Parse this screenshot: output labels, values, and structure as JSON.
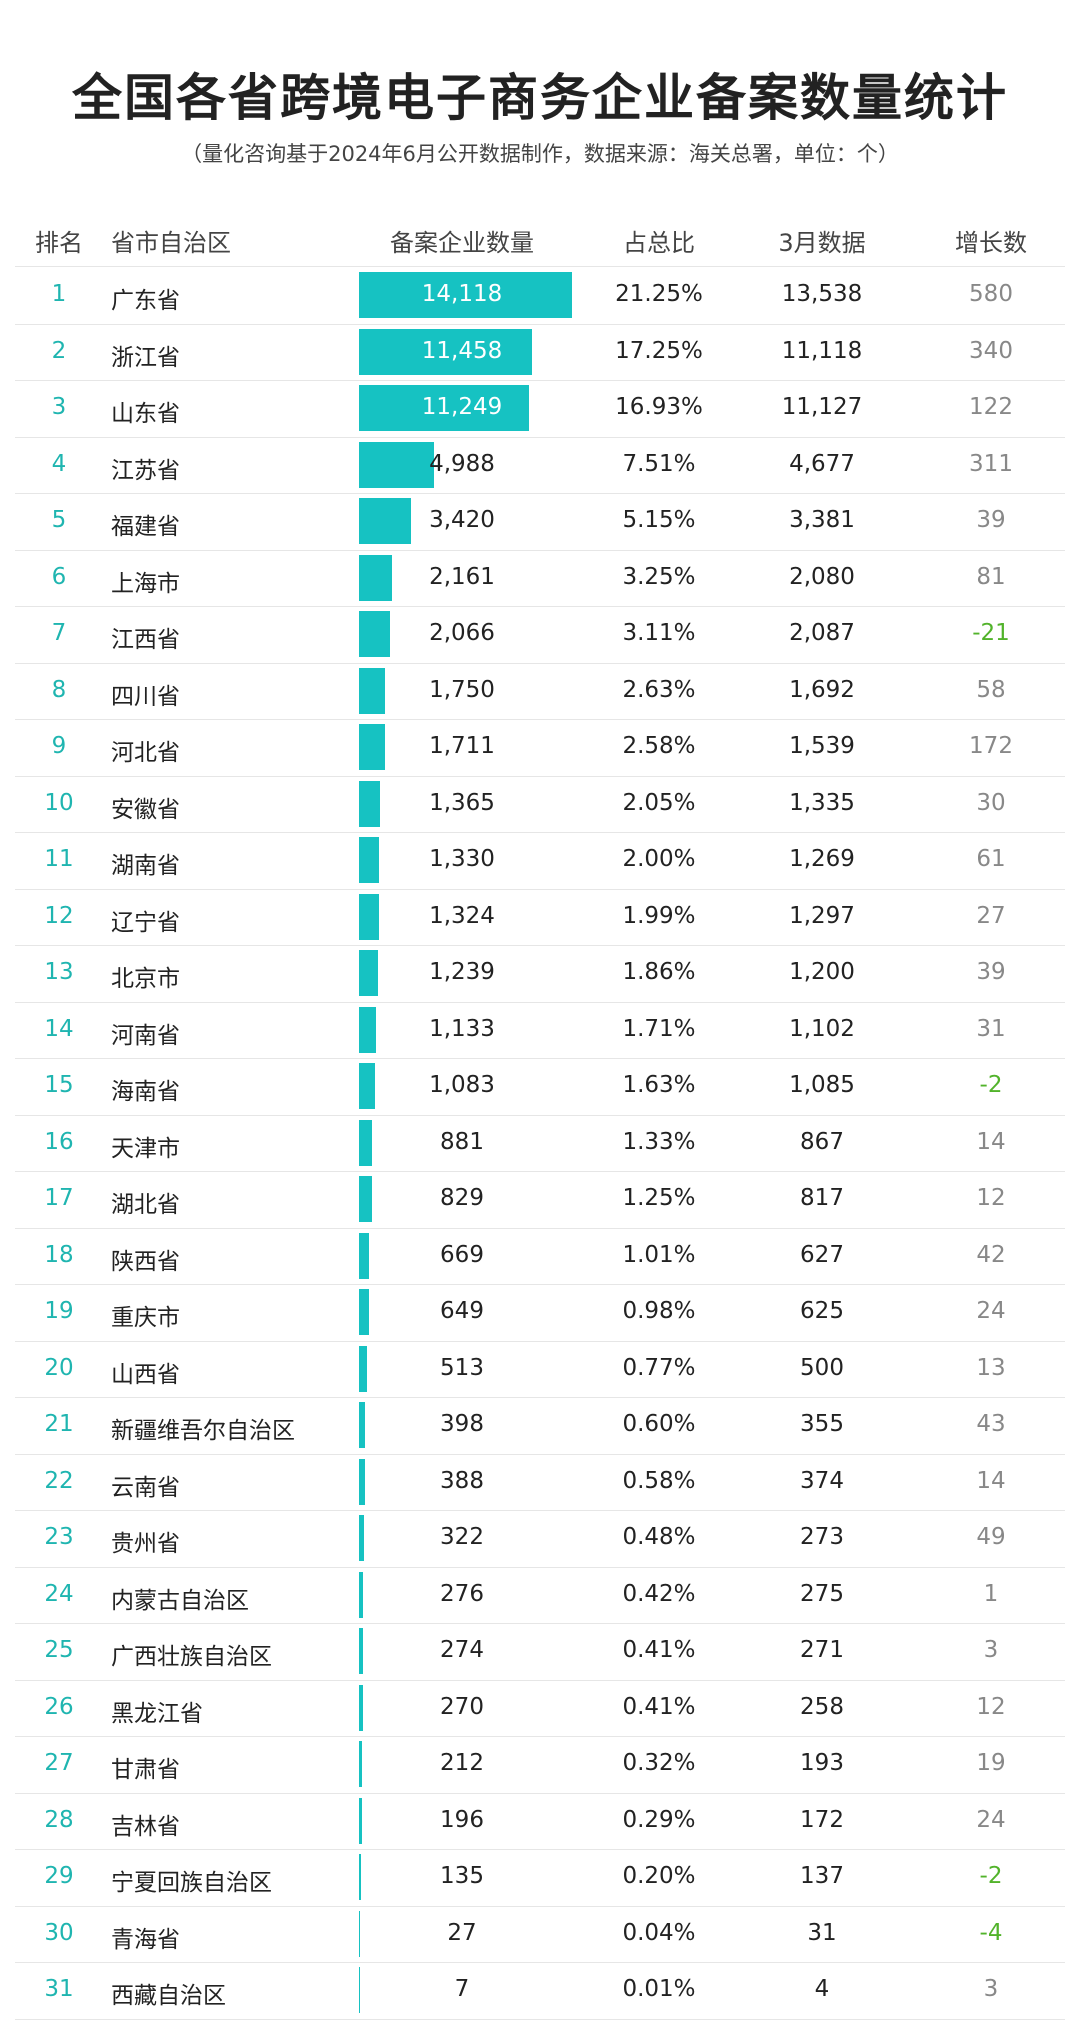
{
  "header": {
    "title": "全国各省跨境电子商务企业备案数量统计",
    "subtitle": "（量化咨询基于2024年6月公开数据制作，数据来源：海关总署，单位：个）"
  },
  "table": {
    "columns": [
      "排名",
      "省市自治区",
      "备案企业数量",
      "占总比",
      "3月数据",
      "增长数"
    ],
    "rows": [
      [
        1,
        "广东省",
        {
          "value": 14118,
          "label": "14,118"
        },
        "21.25%",
        "13,538",
        580
      ],
      [
        2,
        "浙江省",
        {
          "value": 11458,
          "label": "11,458"
        },
        "17.25%",
        "11,118",
        340
      ],
      [
        3,
        "山东省",
        {
          "value": 11249,
          "label": "11,249"
        },
        "16.93%",
        "11,127",
        122
      ],
      [
        4,
        "江苏省",
        {
          "value": 4988,
          "label": "4,988"
        },
        "7.51%",
        "4,677",
        311
      ],
      [
        5,
        "福建省",
        {
          "value": 3420,
          "label": "3,420"
        },
        "5.15%",
        "3,381",
        39
      ],
      [
        6,
        "上海市",
        {
          "value": 2161,
          "label": "2,161"
        },
        "3.25%",
        "2,080",
        81
      ],
      [
        7,
        "江西省",
        {
          "value": 2066,
          "label": "2,066"
        },
        "3.11%",
        "2,087",
        -21
      ],
      [
        8,
        "四川省",
        {
          "value": 1750,
          "label": "1,750"
        },
        "2.63%",
        "1,692",
        58
      ],
      [
        9,
        "河北省",
        {
          "value": 1711,
          "label": "1,711"
        },
        "2.58%",
        "1,539",
        172
      ],
      [
        10,
        "安徽省",
        {
          "value": 1365,
          "label": "1,365"
        },
        "2.05%",
        "1,335",
        30
      ],
      [
        11,
        "湖南省",
        {
          "value": 1330,
          "label": "1,330"
        },
        "2.00%",
        "1,269",
        61
      ],
      [
        12,
        "辽宁省",
        {
          "value": 1324,
          "label": "1,324"
        },
        "1.99%",
        "1,297",
        27
      ],
      [
        13,
        "北京市",
        {
          "value": 1239,
          "label": "1,239"
        },
        "1.86%",
        "1,200",
        39
      ],
      [
        14,
        "河南省",
        {
          "value": 1133,
          "label": "1,133"
        },
        "1.71%",
        "1,102",
        31
      ],
      [
        15,
        "海南省",
        {
          "value": 1083,
          "label": "1,083"
        },
        "1.63%",
        "1,085",
        -2
      ],
      [
        16,
        "天津市",
        881,
        "1.33%",
        867,
        14
      ],
      [
        17,
        "湖北省",
        829,
        "1.25%",
        817,
        12
      ],
      [
        18,
        "陕西省",
        669,
        "1.01%",
        627,
        42
      ],
      [
        19,
        "重庆市",
        649,
        "0.98%",
        625,
        24
      ],
      [
        20,
        "山西省",
        513,
        "0.77%",
        500,
        13
      ],
      [
        21,
        "新疆维吾尔自治区",
        398,
        "0.60%",
        355,
        43
      ],
      [
        22,
        "云南省",
        388,
        "0.58%",
        374,
        14
      ],
      [
        23,
        "贵州省",
        322,
        "0.48%",
        273,
        49
      ],
      [
        24,
        "内蒙古自治区",
        276,
        "0.42%",
        275,
        1
      ],
      [
        25,
        "广西壮族自治区",
        274,
        "0.41%",
        271,
        3
      ],
      [
        26,
        "黑龙江省",
        270,
        "0.41%",
        258,
        12
      ],
      [
        27,
        "甘肃省",
        212,
        "0.32%",
        193,
        19
      ],
      [
        28,
        "吉林省",
        196,
        "0.29%",
        172,
        24
      ],
      [
        29,
        "宁夏回族自治区",
        135,
        "0.20%",
        137,
        -2
      ],
      [
        30,
        "青海省",
        27,
        "0.04%",
        31,
        -4
      ],
      [
        31,
        "西藏自治区",
        7,
        "0.01%",
        4,
        3
      ]
    ]
  }
}
